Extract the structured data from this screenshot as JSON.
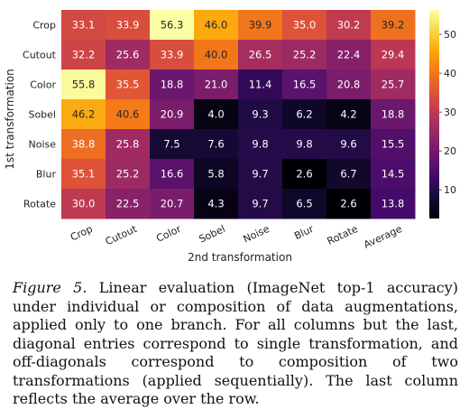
{
  "chart_data": {
    "type": "heatmap",
    "xlabel": "2nd transformation",
    "ylabel": "1st transformation",
    "x_categories": [
      "Crop",
      "Cutout",
      "Color",
      "Sobel",
      "Noise",
      "Blur",
      "Rotate",
      "Average"
    ],
    "y_categories": [
      "Crop",
      "Cutout",
      "Color",
      "Sobel",
      "Noise",
      "Blur",
      "Rotate"
    ],
    "values": [
      [
        33.1,
        33.9,
        56.3,
        46.0,
        39.9,
        35.0,
        30.2,
        39.2
      ],
      [
        32.2,
        25.6,
        33.9,
        40.0,
        26.5,
        25.2,
        22.4,
        29.4
      ],
      [
        55.8,
        35.5,
        18.8,
        21.0,
        11.4,
        16.5,
        20.8,
        25.7
      ],
      [
        46.2,
        40.6,
        20.9,
        4.0,
        9.3,
        6.2,
        4.2,
        18.8
      ],
      [
        38.8,
        25.8,
        7.5,
        7.6,
        9.8,
        9.8,
        9.6,
        15.5
      ],
      [
        35.1,
        25.2,
        16.6,
        5.8,
        9.7,
        2.6,
        6.7,
        14.5
      ],
      [
        30.0,
        22.5,
        20.7,
        4.3,
        9.7,
        6.5,
        2.6,
        13.8
      ]
    ],
    "colormap": "inferno",
    "value_range": [
      2.6,
      56.3
    ],
    "colorbar_ticks": [
      10,
      20,
      30,
      40,
      50
    ],
    "value_decimals": 1,
    "x_tick_rotation": "rotated ~25° counter-clockwise"
  },
  "caption": {
    "label": "Figure 5.",
    "text": " Linear evaluation (ImageNet top-1 accuracy) under individual or composition of data augmentations, applied only to one branch. For all columns but the last, diagonal entries correspond to single transformation, and off-diagonals correspond to composition of two transformations (applied sequentially). The last column reflects the average over the row."
  }
}
